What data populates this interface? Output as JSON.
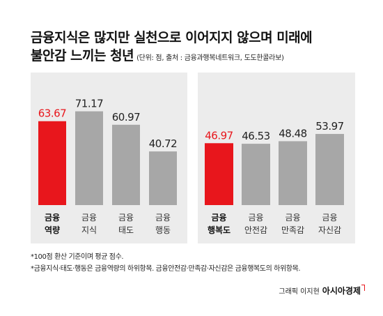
{
  "title": {
    "line1": "금융지식은 많지만 실천으로 이어지지 않으며 미래에",
    "line2": "불안감 느끼는 청년",
    "source": "(단위: 점, 출처 : 금융과행복네트워크, 도도한콜라보)"
  },
  "colors": {
    "highlight": "#e8161c",
    "bar": "#a7a7a7",
    "panel_bg": "#ececec"
  },
  "chart_data": [
    {
      "type": "bar",
      "categories": [
        [
          "금융",
          "역량"
        ],
        [
          "금융",
          "지식"
        ],
        [
          "금융",
          "태도"
        ],
        [
          "금융",
          "행동"
        ]
      ],
      "values": [
        63.67,
        71.17,
        60.97,
        40.72
      ],
      "value_labels": [
        "63.67",
        "71.17",
        "60.97",
        "40.72"
      ],
      "highlight_index": 0,
      "ylim": [
        0,
        90
      ],
      "grid": false
    },
    {
      "type": "bar",
      "categories": [
        [
          "금융",
          "행복도"
        ],
        [
          "금융",
          "안전감"
        ],
        [
          "금융",
          "만족감"
        ],
        [
          "금융",
          "자신감"
        ]
      ],
      "values": [
        46.97,
        46.53,
        48.48,
        53.97
      ],
      "value_labels": [
        "46.97",
        "46.53",
        "48.48",
        "53.97"
      ],
      "highlight_index": 0,
      "ylim": [
        0,
        90
      ],
      "grid": false
    }
  ],
  "footnotes": [
    "*100점 환산 기준이며 평균 점수.",
    "*금융지식·태도·행동은 금융역량의 하위항목. 금융안전감·만족감·자신감은 금융행복도의 하위항목."
  ],
  "credit": {
    "author": "그래픽 이지현",
    "publisher": "아시아경제"
  }
}
